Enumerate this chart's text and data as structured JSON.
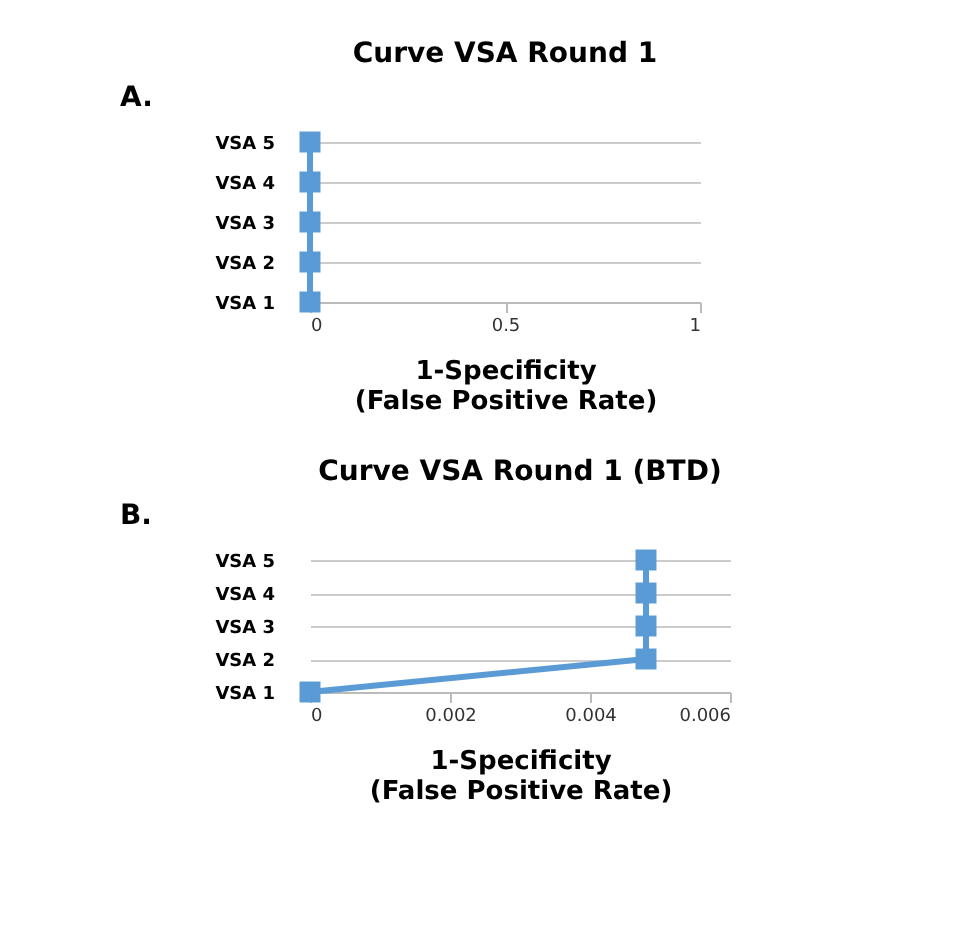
{
  "chart_data": [
    {
      "type": "line",
      "title": "Curve VSA Round 1",
      "xlabel": "1-Specificity\n(False Positive Rate)",
      "annotations": [
        "A."
      ],
      "orientation": "horizontal",
      "categories": [
        "VSA 5",
        "VSA 4",
        "VSA 3",
        "VSA 2",
        "VSA 1"
      ],
      "values": [
        0,
        0,
        0,
        0,
        0
      ],
      "color": "#5b9bd5",
      "xlim": [
        0,
        1
      ],
      "xticks": [
        0,
        0.5,
        1
      ],
      "grid": "y",
      "marker": "square",
      "line_style": "solid"
    },
    {
      "type": "line",
      "title": "Curve VSA Round 1 (BTD)",
      "xlabel": "1-Specificity\n(False Positive Rate)",
      "annotations": [
        "B."
      ],
      "orientation": "horizontal",
      "categories": [
        "VSA 5",
        "VSA 4",
        "VSA 3",
        "VSA 2",
        "VSA 1"
      ],
      "values": [
        0.0048,
        0.0048,
        0.0048,
        0.0048,
        0
      ],
      "color": "#5b9bd5",
      "xlim": [
        0,
        0.006
      ],
      "xticks": [
        0,
        0.002,
        0.004,
        0.006
      ],
      "grid": "y",
      "marker": "square",
      "line_style": "solid"
    }
  ]
}
